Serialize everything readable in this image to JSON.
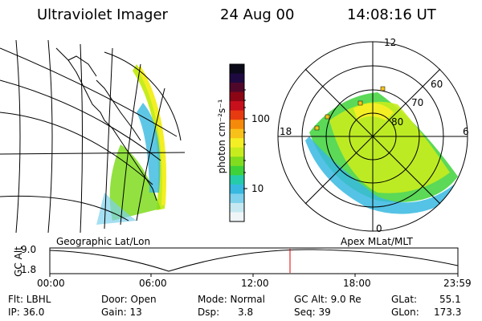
{
  "header": {
    "instrument": "Ultraviolet Imager",
    "date": "24 Aug 00",
    "time": "14:08:16 UT"
  },
  "colorbar": {
    "unit_label": "photon cm⁻²s⁻¹",
    "ticks": [
      "100",
      "10"
    ],
    "colors": [
      "#0a0a18",
      "#1e0a40",
      "#50082a",
      "#8c0616",
      "#c8101c",
      "#e83a10",
      "#f58a0a",
      "#f8c11a",
      "#f3ef24",
      "#c6ec1e",
      "#7fdc1e",
      "#3ed23a",
      "#25cca9",
      "#37b9e0",
      "#7fd1ec",
      "#c5e8f1",
      "#f0f6f8"
    ]
  },
  "polar_plot": {
    "mlt_labels": {
      "top": "12",
      "left": "18",
      "right": "6",
      "bottom": "0"
    },
    "lat_labels": [
      "60",
      "70",
      "80"
    ]
  },
  "map_labels": {
    "left": "Geographic Lat/Lon",
    "right": "Apex MLat/MLT"
  },
  "timeline": {
    "axis_label": "GC Alt",
    "y_ticks": [
      "9.0",
      "1.8"
    ],
    "x_ticks": [
      "00:00",
      "06:00",
      "12:00",
      "18:00",
      "23:59"
    ],
    "marker_time": "14:08"
  },
  "info": {
    "row1": {
      "flt": "Flt: LBHL",
      "door": "Door: Open",
      "mode": "Mode: Normal",
      "gcalt": "GC Alt: 9.0 Re",
      "glat_label": "GLat:",
      "glat_value": "55.1"
    },
    "row2": {
      "ip": "IP: 36.0",
      "gain": "Gain: 13",
      "dsp_label": "Dsp:",
      "dsp_value": "3.8",
      "seq": "Seq: 39",
      "glon_label": "GLon:",
      "glon_value": "173.3"
    }
  }
}
